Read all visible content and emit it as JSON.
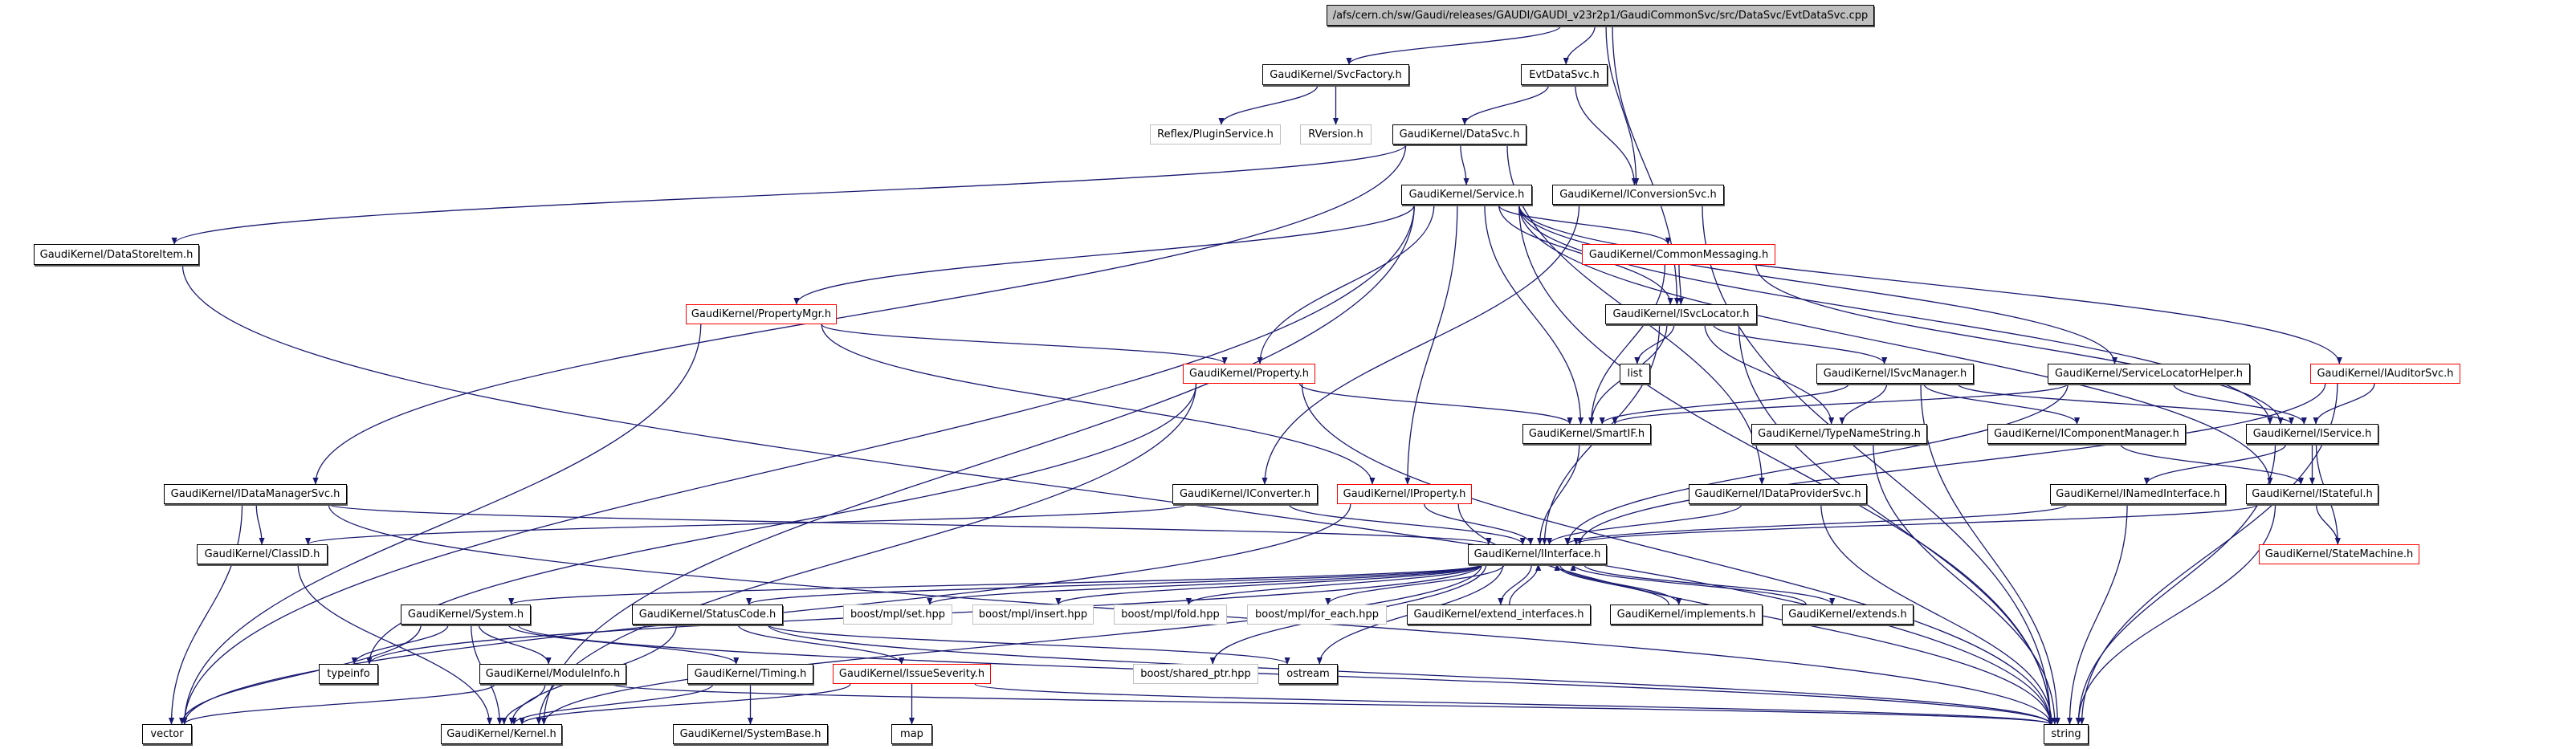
{
  "colors": {
    "edge": "#191970",
    "root_fill": "#bfbfbf",
    "missing_border": "#ff0000",
    "external_border": "#bfbfbf"
  },
  "nodes": [
    {
      "id": "root",
      "label": "/afs/cern.ch/sw/Gaudi/releases/GAUDI/GAUDI_v23r2p1/GaudiCommonSvc/src/DataSvc/EvtDataSvc.cpp",
      "style": "root"
    },
    {
      "id": "SvcFactory",
      "label": "GaudiKernel/SvcFactory.h",
      "style": "normal"
    },
    {
      "id": "EvtDataSvc",
      "label": "EvtDataSvc.h",
      "style": "normal"
    },
    {
      "id": "PluginService",
      "label": "Reflex/PluginService.h",
      "style": "gray"
    },
    {
      "id": "RVersion",
      "label": "RVersion.h",
      "style": "gray"
    },
    {
      "id": "DataSvc",
      "label": "GaudiKernel/DataSvc.h",
      "style": "normal"
    },
    {
      "id": "Service",
      "label": "GaudiKernel/Service.h",
      "style": "normal"
    },
    {
      "id": "IConversionSvc",
      "label": "GaudiKernel/IConversionSvc.h",
      "style": "normal"
    },
    {
      "id": "DataStoreItem",
      "label": "GaudiKernel/DataStoreItem.h",
      "style": "normal"
    },
    {
      "id": "CommonMessaging",
      "label": "GaudiKernel/CommonMessaging.h",
      "style": "red"
    },
    {
      "id": "PropertyMgr",
      "label": "GaudiKernel/PropertyMgr.h",
      "style": "red"
    },
    {
      "id": "ISvcLocator",
      "label": "GaudiKernel/ISvcLocator.h",
      "style": "normal"
    },
    {
      "id": "list",
      "label": "list",
      "style": "normal"
    },
    {
      "id": "Property",
      "label": "GaudiKernel/Property.h",
      "style": "red"
    },
    {
      "id": "ISvcManager",
      "label": "GaudiKernel/ISvcManager.h",
      "style": "normal"
    },
    {
      "id": "ServiceLocatorHelper",
      "label": "GaudiKernel/ServiceLocatorHelper.h",
      "style": "normal"
    },
    {
      "id": "IAuditorSvc",
      "label": "GaudiKernel/IAuditorSvc.h",
      "style": "red"
    },
    {
      "id": "SmartIF",
      "label": "GaudiKernel/SmartIF.h",
      "style": "normal"
    },
    {
      "id": "TypeNameString",
      "label": "GaudiKernel/TypeNameString.h",
      "style": "normal"
    },
    {
      "id": "IComponentManager",
      "label": "GaudiKernel/IComponentManager.h",
      "style": "normal"
    },
    {
      "id": "IService",
      "label": "GaudiKernel/IService.h",
      "style": "normal"
    },
    {
      "id": "IDataManagerSvc",
      "label": "GaudiKernel/IDataManagerSvc.h",
      "style": "normal"
    },
    {
      "id": "IConverter",
      "label": "GaudiKernel/IConverter.h",
      "style": "normal"
    },
    {
      "id": "IProperty",
      "label": "GaudiKernel/IProperty.h",
      "style": "red"
    },
    {
      "id": "IDataProviderSvc",
      "label": "GaudiKernel/IDataProviderSvc.h",
      "style": "normal"
    },
    {
      "id": "INamedInterface",
      "label": "GaudiKernel/INamedInterface.h",
      "style": "normal"
    },
    {
      "id": "IStateful",
      "label": "GaudiKernel/IStateful.h",
      "style": "normal"
    },
    {
      "id": "ClassID",
      "label": "GaudiKernel/ClassID.h",
      "style": "normal"
    },
    {
      "id": "IInterface",
      "label": "GaudiKernel/IInterface.h",
      "style": "normal"
    },
    {
      "id": "StateMachine",
      "label": "GaudiKernel/StateMachine.h",
      "style": "red"
    },
    {
      "id": "System",
      "label": "GaudiKernel/System.h",
      "style": "normal"
    },
    {
      "id": "StatusCode",
      "label": "GaudiKernel/StatusCode.h",
      "style": "normal"
    },
    {
      "id": "mplset",
      "label": "boost/mpl/set.hpp",
      "style": "gray"
    },
    {
      "id": "mplinsert",
      "label": "boost/mpl/insert.hpp",
      "style": "gray"
    },
    {
      "id": "mplfold",
      "label": "boost/mpl/fold.hpp",
      "style": "gray"
    },
    {
      "id": "mplforeach",
      "label": "boost/mpl/for_each.hpp",
      "style": "gray"
    },
    {
      "id": "extend_interfaces",
      "label": "GaudiKernel/extend_interfaces.h",
      "style": "normal"
    },
    {
      "id": "implements",
      "label": "GaudiKernel/implements.h",
      "style": "normal"
    },
    {
      "id": "extends",
      "label": "GaudiKernel/extends.h",
      "style": "normal"
    },
    {
      "id": "typeinfo",
      "label": "typeinfo",
      "style": "normal"
    },
    {
      "id": "ModuleInfo",
      "label": "GaudiKernel/ModuleInfo.h",
      "style": "normal"
    },
    {
      "id": "Timing",
      "label": "GaudiKernel/Timing.h",
      "style": "normal"
    },
    {
      "id": "IssueSeverity",
      "label": "GaudiKernel/IssueSeverity.h",
      "style": "red"
    },
    {
      "id": "shared_ptr",
      "label": "boost/shared_ptr.hpp",
      "style": "gray"
    },
    {
      "id": "ostream",
      "label": "ostream",
      "style": "normal"
    },
    {
      "id": "vector",
      "label": "vector",
      "style": "normal"
    },
    {
      "id": "Kernel",
      "label": "GaudiKernel/Kernel.h",
      "style": "normal"
    },
    {
      "id": "SystemBase",
      "label": "GaudiKernel/SystemBase.h",
      "style": "normal"
    },
    {
      "id": "map",
      "label": "map",
      "style": "normal"
    },
    {
      "id": "string",
      "label": "string",
      "style": "normal"
    }
  ],
  "edges": [
    [
      "root",
      "SvcFactory"
    ],
    [
      "root",
      "EvtDataSvc"
    ],
    [
      "root",
      "IConversionSvc"
    ],
    [
      "root",
      "ISvcLocator"
    ],
    [
      "SvcFactory",
      "PluginService"
    ],
    [
      "SvcFactory",
      "RVersion"
    ],
    [
      "EvtDataSvc",
      "DataSvc"
    ],
    [
      "EvtDataSvc",
      "IConversionSvc"
    ],
    [
      "DataSvc",
      "Service"
    ],
    [
      "DataSvc",
      "DataStoreItem"
    ],
    [
      "DataSvc",
      "IDataManagerSvc"
    ],
    [
      "DataSvc",
      "IDataProviderSvc"
    ],
    [
      "Service",
      "vector"
    ],
    [
      "Service",
      "PropertyMgr"
    ],
    [
      "Service",
      "Property"
    ],
    [
      "Service",
      "IProperty"
    ],
    [
      "Service",
      "SmartIF"
    ],
    [
      "Service",
      "ISvcLocator"
    ],
    [
      "Service",
      "CommonMessaging"
    ],
    [
      "Service",
      "ServiceLocatorHelper"
    ],
    [
      "Service",
      "IService"
    ],
    [
      "Service",
      "IAuditorSvc"
    ],
    [
      "Service",
      "IStateful"
    ],
    [
      "Service",
      "string"
    ],
    [
      "Service",
      "Kernel"
    ],
    [
      "IConversionSvc",
      "IConverter"
    ],
    [
      "IConversionSvc",
      "string"
    ],
    [
      "DataStoreItem",
      "string"
    ],
    [
      "CommonMessaging",
      "ISvcLocator"
    ],
    [
      "CommonMessaging",
      "SmartIF"
    ],
    [
      "CommonMessaging",
      "IService"
    ],
    [
      "PropertyMgr",
      "Property"
    ],
    [
      "PropertyMgr",
      "IProperty"
    ],
    [
      "PropertyMgr",
      "vector"
    ],
    [
      "Property",
      "SmartIF"
    ],
    [
      "Property",
      "typeinfo"
    ],
    [
      "Property",
      "Kernel"
    ],
    [
      "Property",
      "string"
    ],
    [
      "ISvcLocator",
      "list"
    ],
    [
      "ISvcLocator",
      "SmartIF"
    ],
    [
      "ISvcLocator",
      "IInterface"
    ],
    [
      "ISvcLocator",
      "ISvcManager"
    ],
    [
      "ISvcLocator",
      "TypeNameString"
    ],
    [
      "ISvcLocator",
      "string"
    ],
    [
      "ISvcManager",
      "SmartIF"
    ],
    [
      "ISvcManager",
      "TypeNameString"
    ],
    [
      "ISvcManager",
      "IComponentManager"
    ],
    [
      "ISvcManager",
      "IService"
    ],
    [
      "ISvcManager",
      "string"
    ],
    [
      "ServiceLocatorHelper",
      "SmartIF"
    ],
    [
      "ServiceLocatorHelper",
      "IService"
    ],
    [
      "ServiceLocatorHelper",
      "IInterface"
    ],
    [
      "IAuditorSvc",
      "IService"
    ],
    [
      "IAuditorSvc",
      "string"
    ],
    [
      "IAuditorSvc",
      "IInterface"
    ],
    [
      "IService",
      "INamedInterface"
    ],
    [
      "IService",
      "IStateful"
    ],
    [
      "IService",
      "StateMachine"
    ],
    [
      "IService",
      "string"
    ],
    [
      "IComponentManager",
      "IStateful"
    ],
    [
      "IStateful",
      "IInterface"
    ],
    [
      "IStateful",
      "StateMachine"
    ],
    [
      "IStateful",
      "string"
    ],
    [
      "INamedInterface",
      "IInterface"
    ],
    [
      "INamedInterface",
      "string"
    ],
    [
      "IDataProviderSvc",
      "IInterface"
    ],
    [
      "IDataProviderSvc",
      "string"
    ],
    [
      "IConverter",
      "IInterface"
    ],
    [
      "IConverter",
      "ClassID"
    ],
    [
      "IProperty",
      "IInterface"
    ],
    [
      "IProperty",
      "string"
    ],
    [
      "IProperty",
      "vector"
    ],
    [
      "SmartIF",
      "IInterface"
    ],
    [
      "TypeNameString",
      "string"
    ],
    [
      "IDataManagerSvc",
      "ClassID"
    ],
    [
      "IDataManagerSvc",
      "vector"
    ],
    [
      "IDataManagerSvc",
      "IInterface"
    ],
    [
      "IDataManagerSvc",
      "string"
    ],
    [
      "ClassID",
      "Kernel"
    ],
    [
      "IInterface",
      "System"
    ],
    [
      "IInterface",
      "StatusCode"
    ],
    [
      "IInterface",
      "mplset"
    ],
    [
      "IInterface",
      "mplinsert"
    ],
    [
      "IInterface",
      "mplfold"
    ],
    [
      "IInterface",
      "mplforeach"
    ],
    [
      "IInterface",
      "extend_interfaces"
    ],
    [
      "IInterface",
      "implements"
    ],
    [
      "IInterface",
      "extends"
    ],
    [
      "IInterface",
      "typeinfo"
    ],
    [
      "IInterface",
      "Kernel"
    ],
    [
      "IInterface",
      "ostream"
    ],
    [
      "IInterface",
      "shared_ptr"
    ],
    [
      "extend_interfaces",
      "IInterface"
    ],
    [
      "implements",
      "IInterface"
    ],
    [
      "extends",
      "IInterface"
    ],
    [
      "System",
      "typeinfo"
    ],
    [
      "System",
      "ModuleInfo"
    ],
    [
      "System",
      "Timing"
    ],
    [
      "System",
      "Kernel"
    ],
    [
      "System",
      "vector"
    ],
    [
      "System",
      "string"
    ],
    [
      "ModuleInfo",
      "Kernel"
    ],
    [
      "ModuleInfo",
      "vector"
    ],
    [
      "ModuleInfo",
      "string"
    ],
    [
      "Timing",
      "SystemBase"
    ],
    [
      "Timing",
      "Kernel"
    ],
    [
      "StatusCode",
      "IssueSeverity"
    ],
    [
      "StatusCode",
      "Kernel"
    ],
    [
      "StatusCode",
      "ostream"
    ],
    [
      "StatusCode",
      "string"
    ],
    [
      "IssueSeverity",
      "map"
    ],
    [
      "IssueSeverity",
      "Kernel"
    ],
    [
      "IssueSeverity",
      "string"
    ]
  ]
}
